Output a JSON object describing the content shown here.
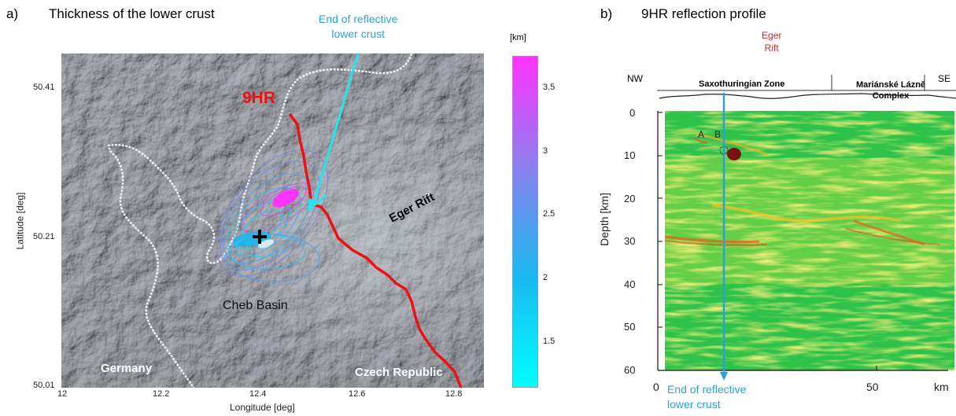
{
  "panel_a": {
    "letter": "a)",
    "title": "Thickness of the lower crust",
    "annotation": "End of reflective\nlower crust",
    "profile_label": "9HR",
    "labels": {
      "basin": "Cheb Basin",
      "rift": "Eger Rift",
      "germany": "Germany",
      "czech": "Czech Republic"
    },
    "xlabel": "Longitude [deg]",
    "ylabel": "Latitude [deg]",
    "xticks": [
      "12",
      "12.2",
      "12.4",
      "12.6",
      "12.8"
    ],
    "yticks": [
      "50.41",
      "50.21",
      "50.01"
    ],
    "colorbar": {
      "unit": "[km]",
      "ticks": [
        "3.5",
        "3",
        "2.5",
        "2",
        "1.5"
      ],
      "colors": [
        "#ff33ff",
        "#8a7ff0",
        "#1ab8f0",
        "#00ffff"
      ]
    }
  },
  "panel_b": {
    "letter": "b)",
    "title": "9HR reflection profile",
    "nw": "NW",
    "se": "SE",
    "eger_rift": "Eger\nRift",
    "zone1": "Saxothuringian Zone",
    "zone2": "Mariánské Lázně\nComplex",
    "points": [
      "A",
      "B"
    ],
    "ylabel": "Depth [km]",
    "yticks": [
      "0",
      "10",
      "20",
      "30",
      "40",
      "50",
      "60"
    ],
    "xticks": [
      "0",
      "50",
      "km"
    ],
    "annotation": "End of reflective\nlower crust"
  }
}
